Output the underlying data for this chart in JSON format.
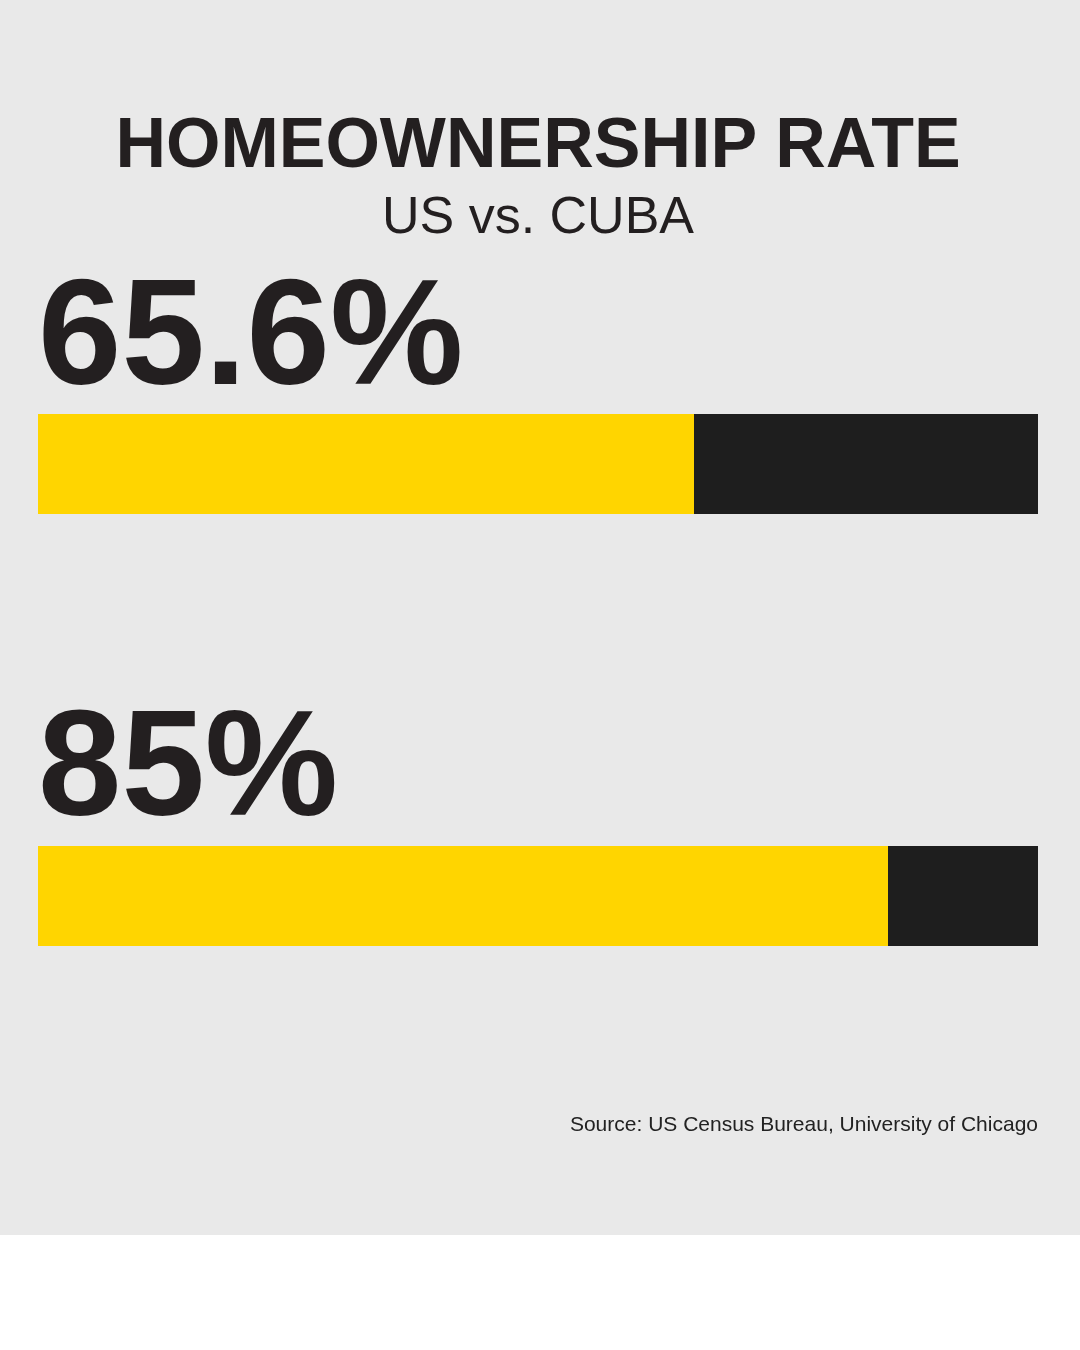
{
  "chart_data": {
    "type": "bar",
    "orientation": "horizontal",
    "stacked": true,
    "title": "HOMEOWNERSHIP RATE",
    "subtitle": "US vs. CUBA",
    "categories": [
      null,
      null
    ],
    "series": [
      {
        "color": "#ffd500",
        "values": [
          65.6,
          85
        ],
        "value_labels": [
          "65.6%",
          "85%"
        ]
      },
      {
        "color": "#1e1e1e",
        "values": [
          34.4,
          15
        ]
      }
    ],
    "xlim": [
      0,
      100
    ],
    "tick_labels": false,
    "legend": false,
    "annotations": [
      "Source: US Census Bureau, University of Chicago"
    ]
  }
}
